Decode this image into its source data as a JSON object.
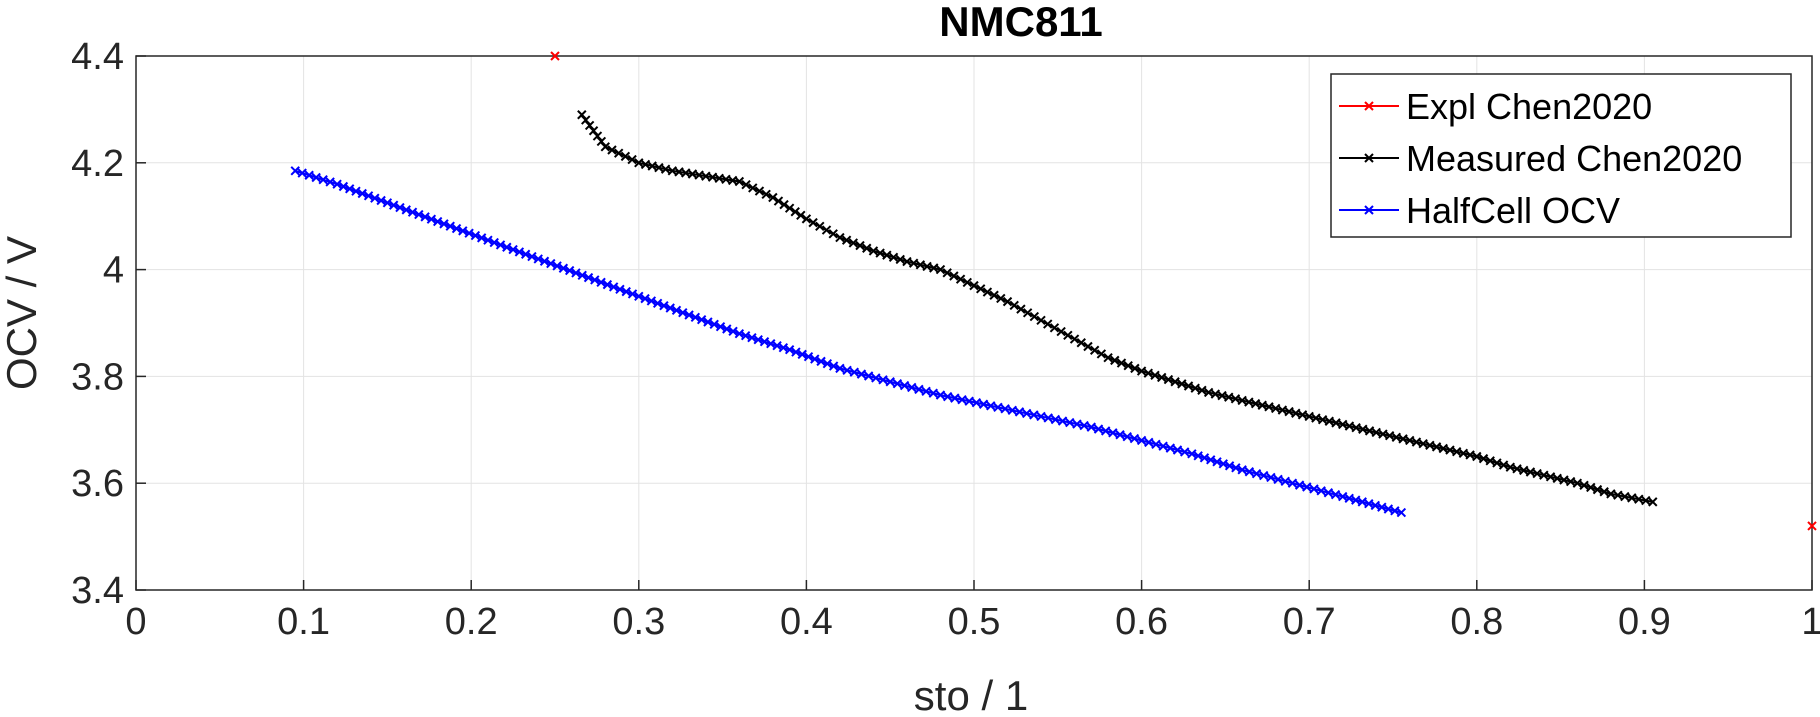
{
  "chart_data": {
    "type": "line",
    "title": "NMC811",
    "xlabel": "sto / 1",
    "ylabel": "OCV / V",
    "xlim": [
      0,
      1
    ],
    "ylim": [
      3.4,
      4.4
    ],
    "xticks": [
      "0",
      "0.1",
      "0.2",
      "0.3",
      "0.4",
      "0.5",
      "0.6",
      "0.7",
      "0.8",
      "0.9",
      "1"
    ],
    "yticks": [
      "3.4",
      "3.6",
      "3.8",
      "4",
      "4.2",
      "4.4"
    ],
    "grid": true,
    "legend_position": "top-right",
    "series": [
      {
        "name": "Expl Chen2020",
        "color": "#ff0000",
        "marker": "x",
        "line": false,
        "x": [
          0.25,
          1.0
        ],
        "y": [
          4.4,
          3.52
        ]
      },
      {
        "name": "Measured Chen2020",
        "color": "#000000",
        "marker": "x",
        "line": true,
        "x": [
          0.266,
          0.28,
          0.3,
          0.32,
          0.34,
          0.36,
          0.38,
          0.4,
          0.42,
          0.44,
          0.46,
          0.48,
          0.5,
          0.52,
          0.54,
          0.56,
          0.58,
          0.6,
          0.62,
          0.64,
          0.66,
          0.68,
          0.7,
          0.72,
          0.74,
          0.76,
          0.78,
          0.8,
          0.82,
          0.84,
          0.86,
          0.88,
          0.905
        ],
        "y": [
          4.29,
          4.23,
          4.2,
          4.185,
          4.175,
          4.165,
          4.135,
          4.095,
          4.06,
          4.035,
          4.015,
          4.0,
          3.97,
          3.94,
          3.905,
          3.87,
          3.835,
          3.81,
          3.79,
          3.77,
          3.755,
          3.74,
          3.725,
          3.71,
          3.695,
          3.68,
          3.665,
          3.65,
          3.63,
          3.615,
          3.6,
          3.58,
          3.565
        ]
      },
      {
        "name": "HalfCell OCV",
        "color": "#0000ff",
        "marker": "x",
        "line": true,
        "x": [
          0.095,
          0.12,
          0.15,
          0.18,
          0.21,
          0.24,
          0.27,
          0.3,
          0.33,
          0.36,
          0.39,
          0.42,
          0.45,
          0.48,
          0.51,
          0.54,
          0.57,
          0.6,
          0.63,
          0.66,
          0.69,
          0.72,
          0.755
        ],
        "y": [
          4.185,
          4.16,
          4.125,
          4.09,
          4.055,
          4.02,
          3.985,
          3.95,
          3.915,
          3.88,
          3.85,
          3.815,
          3.79,
          3.765,
          3.745,
          3.725,
          3.705,
          3.68,
          3.655,
          3.625,
          3.6,
          3.575,
          3.545
        ]
      }
    ]
  }
}
